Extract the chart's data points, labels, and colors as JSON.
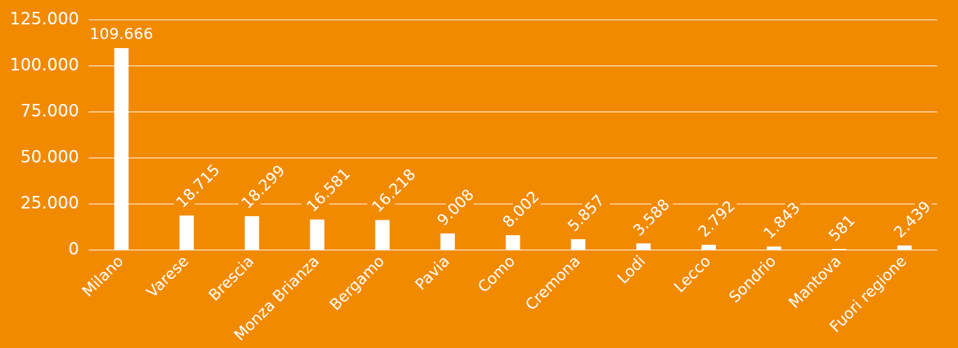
{
  "chart_data": {
    "type": "bar",
    "categories": [
      "Milano",
      "Varese",
      "Brescia",
      "Monza Brianza",
      "Bergamo",
      "Pavia",
      "Como",
      "Cremona",
      "Lodi",
      "Lecco",
      "Sondrio",
      "Mantova",
      "Fuori regione"
    ],
    "values": [
      109666,
      18715,
      18299,
      16581,
      16218,
      9008,
      8002,
      5857,
      3588,
      2792,
      1843,
      581,
      2439
    ],
    "value_labels": [
      "109.666",
      "18.715",
      "18.299",
      "16.581",
      "16.218",
      "9.008",
      "8.002",
      "5.857",
      "3.588",
      "2.792",
      "1.843",
      "581",
      "2.439"
    ],
    "color": "#ffffff",
    "ylim": [
      0,
      125000
    ],
    "yticks": [
      {
        "value": 0,
        "label": "0"
      },
      {
        "value": 25000,
        "label": "25.000"
      },
      {
        "value": 50000,
        "label": "50.000"
      },
      {
        "value": 75000,
        "label": "75.000"
      },
      {
        "value": 100000,
        "label": "100.000"
      },
      {
        "value": 125000,
        "label": "125.000"
      }
    ],
    "grid": "y",
    "legend": false
  }
}
